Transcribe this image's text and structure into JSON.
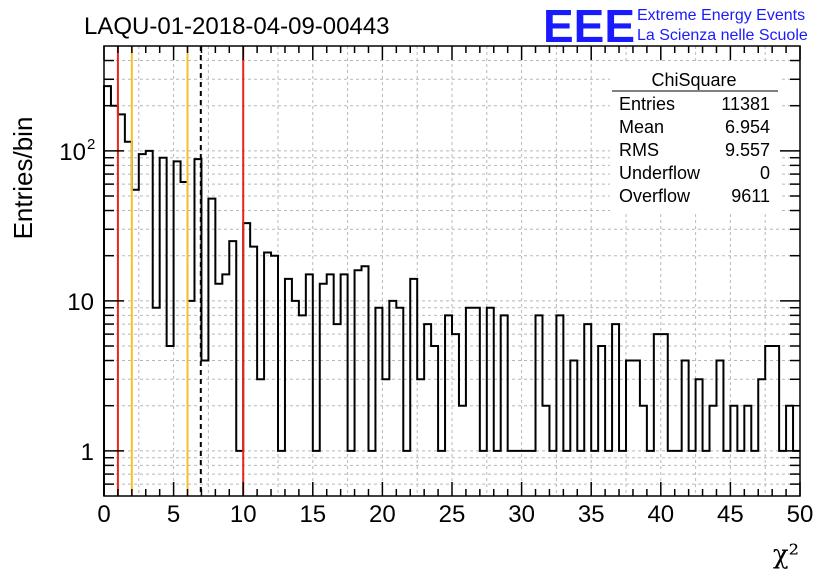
{
  "title": "LAQU-01-2018-04-09-00443",
  "logo": {
    "mark": "EEE",
    "line1": "Extreme Energy Events",
    "line2": "La Scienza nelle Scuole",
    "color": "#1a1aff"
  },
  "stats": {
    "name": "ChiSquare",
    "rows": [
      {
        "label": "Entries",
        "value": "11381"
      },
      {
        "label": "Mean",
        "value": "6.954"
      },
      {
        "label": "RMS",
        "value": "9.557"
      },
      {
        "label": "Underflow",
        "value": "0"
      },
      {
        "label": "Overflow",
        "value": "9611"
      }
    ]
  },
  "chart_data": {
    "type": "bar",
    "histogram": true,
    "xlabel": "χ²",
    "ylabel": "Entries/bin",
    "xlim": [
      0,
      50
    ],
    "ylim": [
      0.5,
      500
    ],
    "yscale": "log",
    "grid": true,
    "bin_width": 0.5,
    "x_ticks": [
      "0",
      "5",
      "10",
      "15",
      "20",
      "25",
      "30",
      "35",
      "40",
      "45",
      "50"
    ],
    "y_ticks": [
      {
        "value": 1,
        "label": "1"
      },
      {
        "value": 10,
        "label": "10"
      },
      {
        "value": 100,
        "label": "10",
        "exp": "2"
      }
    ],
    "values": [
      270,
      200,
      175,
      115,
      55,
      95,
      100,
      9,
      90,
      5,
      85,
      62,
      10,
      88,
      4,
      48,
      13,
      15,
      25,
      1,
      33,
      23,
      3,
      21,
      20,
      1,
      14,
      10,
      8,
      15,
      1,
      13,
      15,
      7,
      15,
      1,
      16,
      17,
      1,
      9,
      3,
      10,
      9,
      1,
      14,
      3,
      7,
      5,
      1,
      8,
      6,
      2,
      9,
      9,
      1,
      9,
      1,
      8,
      1,
      1,
      1,
      1,
      8,
      2,
      1,
      8,
      1,
      4,
      1,
      7,
      1,
      5,
      1,
      7,
      1,
      4,
      4,
      2,
      1,
      6,
      6,
      1,
      1,
      4,
      1,
      3,
      1,
      2,
      4,
      1,
      2,
      1,
      2,
      1,
      3,
      5,
      5,
      1,
      2,
      1
    ],
    "vertical_lines": [
      {
        "x": 1,
        "color": "#e8251b",
        "style": "solid"
      },
      {
        "x": 2,
        "color": "#f5c12a",
        "style": "solid"
      },
      {
        "x": 6,
        "color": "#f5c12a",
        "style": "solid"
      },
      {
        "x": 6.954,
        "color": "#000000",
        "style": "dashed"
      },
      {
        "x": 10,
        "color": "#e8251b",
        "style": "solid"
      }
    ]
  }
}
